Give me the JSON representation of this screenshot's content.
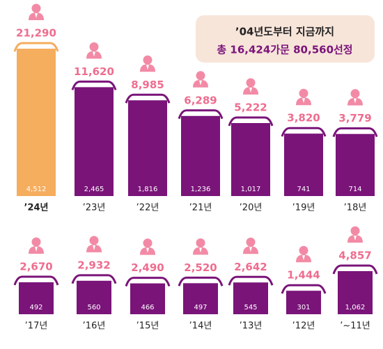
{
  "chart_data": [
    {
      "type": "bar",
      "title": "’04년도부터 지금까지",
      "subtitle": "총 16,424가문 80,560선정",
      "categories": [
        "’24년",
        "’23년",
        "’22년",
        "’21년",
        "’20년",
        "’19년",
        "’18년"
      ],
      "values": [
        21290,
        11620,
        8985,
        6289,
        5222,
        3820,
        3779
      ],
      "value_labels": [
        "21,290",
        "11,620",
        "8,985",
        "6,289",
        "5,222",
        "3,820",
        "3,779"
      ],
      "inner_values": [
        4512,
        2465,
        1816,
        1236,
        1017,
        741,
        714
      ],
      "inner_value_labels": [
        "4,512",
        "2,465",
        "1,816",
        "1,236",
        "1,017",
        "741",
        "714"
      ],
      "colors": [
        "#f5ad5e",
        "#7a1479",
        "#7a1479",
        "#7a1479",
        "#7a1479",
        "#7a1479",
        "#7a1479"
      ]
    },
    {
      "type": "bar",
      "categories": [
        "’17년",
        "’16년",
        "’15년",
        "’14년",
        "’13년",
        "’12년",
        "’~11년"
      ],
      "values": [
        2670,
        2932,
        2490,
        2520,
        2642,
        1444,
        4857
      ],
      "value_labels": [
        "2,670",
        "2,932",
        "2,490",
        "2,520",
        "2,642",
        "1,444",
        "4,857"
      ],
      "inner_values": [
        492,
        560,
        466,
        497,
        545,
        301,
        1062
      ],
      "inner_value_labels": [
        "492",
        "560",
        "466",
        "497",
        "545",
        "301",
        "1,062"
      ],
      "color": "#7a1479"
    }
  ]
}
